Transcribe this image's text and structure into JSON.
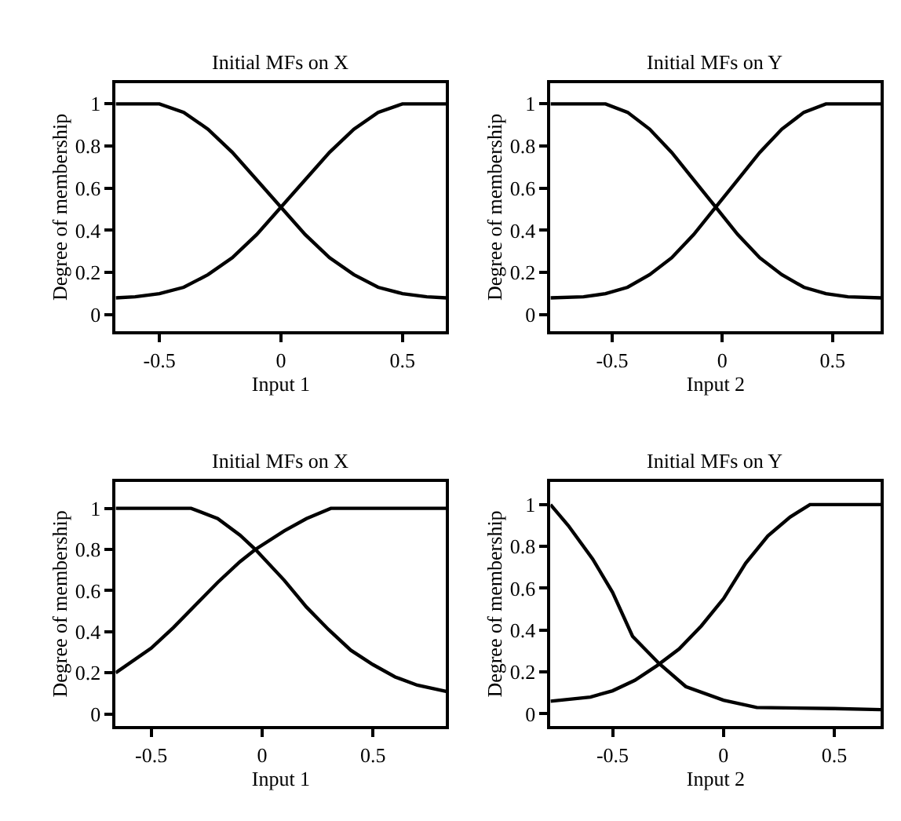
{
  "chart_data": [
    {
      "type": "line",
      "title": "Initial MFs on X",
      "xlabel": "Input 1",
      "ylabel": "Degree of membership",
      "xlim": [
        -0.68,
        0.68
      ],
      "ylim": [
        -0.08,
        1.1
      ],
      "xticks": [
        -0.5,
        0,
        0.5
      ],
      "yticks": [
        0,
        0.2,
        0.4,
        0.6,
        0.8,
        1
      ],
      "grid": false,
      "marker": "none",
      "line_style": "solid",
      "series": [
        {
          "color": "#000000",
          "x": [
            -0.68,
            -0.5,
            -0.4,
            -0.3,
            -0.2,
            -0.1,
            0,
            0.1,
            0.2,
            0.3,
            0.4,
            0.5,
            0.6,
            0.68
          ],
          "values": [
            1,
            1,
            0.96,
            0.88,
            0.77,
            0.64,
            0.51,
            0.38,
            0.27,
            0.19,
            0.13,
            0.1,
            0.085,
            0.08
          ]
        },
        {
          "color": "#000000",
          "x": [
            -0.68,
            -0.6,
            -0.5,
            -0.4,
            -0.3,
            -0.2,
            -0.1,
            0,
            0.1,
            0.2,
            0.3,
            0.4,
            0.5,
            0.68
          ],
          "values": [
            0.08,
            0.085,
            0.1,
            0.13,
            0.19,
            0.27,
            0.38,
            0.51,
            0.64,
            0.77,
            0.88,
            0.96,
            1,
            1
          ]
        }
      ]
    },
    {
      "type": "line",
      "title": "Initial MFs on Y",
      "xlabel": "Input 2",
      "ylabel": "Degree of membership",
      "xlim": [
        -0.78,
        0.72
      ],
      "ylim": [
        -0.08,
        1.1
      ],
      "xticks": [
        -0.5,
        0,
        0.5
      ],
      "yticks": [
        0,
        0.2,
        0.4,
        0.6,
        0.8,
        1
      ],
      "grid": false,
      "marker": "none",
      "line_style": "solid",
      "series": [
        {
          "color": "#000000",
          "x": [
            -0.78,
            -0.53,
            -0.43,
            -0.33,
            -0.23,
            -0.13,
            -0.03,
            0.07,
            0.17,
            0.27,
            0.37,
            0.47,
            0.57,
            0.72
          ],
          "values": [
            1,
            1,
            0.96,
            0.88,
            0.77,
            0.64,
            0.51,
            0.38,
            0.27,
            0.19,
            0.13,
            0.1,
            0.085,
            0.08
          ]
        },
        {
          "color": "#000000",
          "x": [
            -0.78,
            -0.63,
            -0.53,
            -0.43,
            -0.33,
            -0.23,
            -0.13,
            -0.03,
            0.07,
            0.17,
            0.27,
            0.37,
            0.47,
            0.72
          ],
          "values": [
            0.08,
            0.085,
            0.1,
            0.13,
            0.19,
            0.27,
            0.38,
            0.51,
            0.64,
            0.77,
            0.88,
            0.96,
            1,
            1
          ]
        }
      ]
    },
    {
      "type": "line",
      "title": "Initial MFs on X",
      "xlabel": "Input 1",
      "ylabel": "Degree of membership",
      "xlim": [
        -0.66,
        0.83
      ],
      "ylim": [
        -0.06,
        1.13
      ],
      "xticks": [
        -0.5,
        0,
        0.5
      ],
      "yticks": [
        0,
        0.2,
        0.4,
        0.6,
        0.8,
        1
      ],
      "grid": false,
      "marker": "none",
      "line_style": "solid",
      "series": [
        {
          "color": "#000000",
          "x": [
            -0.66,
            -0.32,
            -0.2,
            -0.1,
            -0.03,
            0.1,
            0.2,
            0.3,
            0.4,
            0.5,
            0.6,
            0.7,
            0.83
          ],
          "values": [
            1,
            1,
            0.95,
            0.87,
            0.8,
            0.65,
            0.52,
            0.41,
            0.31,
            0.24,
            0.18,
            0.14,
            0.11
          ]
        },
        {
          "color": "#000000",
          "x": [
            -0.66,
            -0.5,
            -0.4,
            -0.3,
            -0.2,
            -0.1,
            -0.03,
            0.1,
            0.2,
            0.31,
            0.83
          ],
          "values": [
            0.2,
            0.32,
            0.42,
            0.53,
            0.64,
            0.74,
            0.8,
            0.89,
            0.95,
            1,
            1
          ]
        }
      ]
    },
    {
      "type": "line",
      "title": "Initial MFs on Y",
      "xlabel": "Input 2",
      "ylabel": "Degree of membership",
      "xlim": [
        -0.78,
        0.71
      ],
      "ylim": [
        -0.06,
        1.11
      ],
      "xticks": [
        -0.5,
        0,
        0.5
      ],
      "yticks": [
        0,
        0.2,
        0.4,
        0.6,
        0.8,
        1
      ],
      "grid": false,
      "marker": "none",
      "line_style": "solid",
      "series": [
        {
          "color": "#000000",
          "x": [
            -0.78,
            -0.7,
            -0.59,
            -0.5,
            -0.41,
            -0.29,
            -0.17,
            0,
            0.15,
            0.5,
            0.71
          ],
          "values": [
            1,
            0.9,
            0.74,
            0.58,
            0.37,
            0.24,
            0.13,
            0.065,
            0.03,
            0.025,
            0.02
          ]
        },
        {
          "color": "#000000",
          "x": [
            -0.78,
            -0.6,
            -0.5,
            -0.4,
            -0.3,
            -0.2,
            -0.1,
            0,
            0.1,
            0.2,
            0.3,
            0.39,
            0.71
          ],
          "values": [
            0.06,
            0.08,
            0.11,
            0.16,
            0.23,
            0.31,
            0.42,
            0.55,
            0.72,
            0.85,
            0.94,
            1,
            1
          ]
        }
      ]
    }
  ]
}
